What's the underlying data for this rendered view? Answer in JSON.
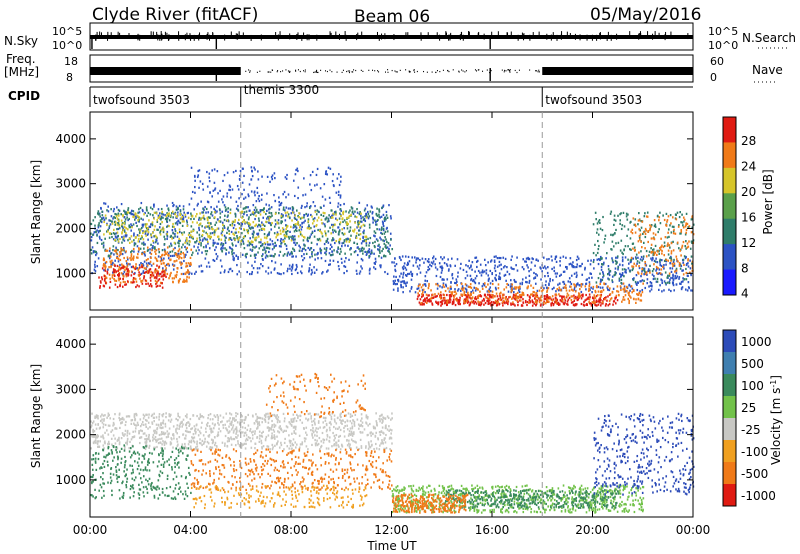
{
  "header": {
    "station": "Clyde River (fitACF)",
    "beam": "Beam 06",
    "date": "05/May/2016"
  },
  "strip_labels": {
    "nsky": "N.Sky",
    "nsky_tick_top": "10^5",
    "nsky_tick_bottom": "10^0",
    "nsearch": "N.Search",
    "nsearch_tick_top": "10^5",
    "nsearch_tick_bottom": "10^0",
    "freq_label_1": "Freq.",
    "freq_label_2": "[MHz]",
    "freq_tick_top": "18",
    "freq_tick_bottom": "8",
    "nave": "Nave",
    "nave_tick_top": "60",
    "nave_tick_bottom": "0",
    "cpid": "CPID",
    "cpid_segments": [
      {
        "label": "twofsound 3503",
        "start_hour": 0
      },
      {
        "label": "themis 3300",
        "start_hour": 6
      },
      {
        "label": "twofsound 3503",
        "start_hour": 18
      }
    ]
  },
  "chart_data": [
    {
      "type": "heatmap",
      "name": "power-panel",
      "xlabel": "",
      "ylabel": "Slant Range [km]",
      "xlim": [
        0,
        24
      ],
      "ylim": [
        180,
        4600
      ],
      "y_ticks": [
        1000,
        2000,
        3000,
        4000
      ],
      "x_ticks": [
        0,
        4,
        8,
        12,
        16,
        20,
        24
      ],
      "colorbar_label": "Power [dB]",
      "colorbar_ticks": [
        "4",
        "8",
        "12",
        "16",
        "20",
        "24",
        "28"
      ],
      "colorbar_colors": [
        "#1a1aff",
        "#2c53c4",
        "#2f7d6a",
        "#5aa04a",
        "#d6c52a",
        "#f07a18",
        "#e01b12"
      ],
      "grid": false
    },
    {
      "type": "heatmap",
      "name": "velocity-panel",
      "xlabel": "Time UT",
      "ylabel": "Slant Range [km]",
      "xlim": [
        0,
        24
      ],
      "ylim": [
        180,
        4600
      ],
      "y_ticks": [
        1000,
        2000,
        3000,
        4000
      ],
      "x_ticks": [
        0,
        4,
        8,
        12,
        16,
        20,
        24
      ],
      "x_tick_labels": [
        "00:00",
        "04:00",
        "08:00",
        "12:00",
        "16:00",
        "20:00",
        "00:00"
      ],
      "colorbar_label": "Velocity [m s^-1]",
      "colorbar_ticks": [
        "1000",
        "500",
        "100",
        "25",
        "-25",
        "-100",
        "-500",
        "-1000"
      ],
      "colorbar_colors": [
        "#2c4bb8",
        "#3f7fb0",
        "#3a8a5c",
        "#72c24a",
        "#c8c8c4",
        "#f0a020",
        "#f07a18",
        "#e01b12"
      ],
      "grid": false
    }
  ],
  "colors": {
    "frame": "#000000",
    "dashed_line": "#999999"
  }
}
